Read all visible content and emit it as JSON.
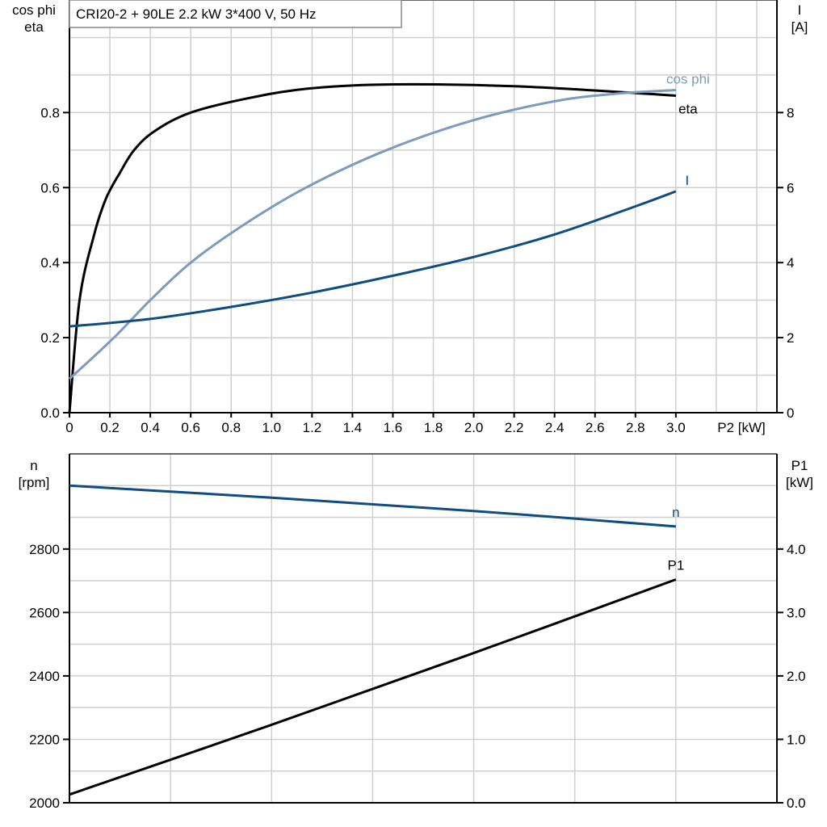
{
  "chart_data": [
    {
      "type": "line",
      "title": "CRI20-2 + 90LE   2.2 kW   3*400 V, 50 Hz",
      "xlabel": "P2 [kW]",
      "ylabel_left": [
        "cos phi",
        "eta"
      ],
      "ylabel_right": [
        "I",
        "[A]"
      ],
      "xlim": [
        0,
        3.5
      ],
      "ylim_left": [
        0,
        1.1
      ],
      "ylim_right": [
        0,
        11
      ],
      "grid": true,
      "x_ticks": [
        "0",
        "0.2",
        "0.4",
        "0.6",
        "0.8",
        "1.0",
        "1.2",
        "1.4",
        "1.6",
        "1.8",
        "2.0",
        "2.2",
        "2.4",
        "2.6",
        "2.8",
        "3.0"
      ],
      "y_ticks_left": [
        "0.0",
        "0.2",
        "0.4",
        "0.6",
        "0.8"
      ],
      "y_ticks_right": [
        "0",
        "2",
        "4",
        "6",
        "8"
      ],
      "series": [
        {
          "name": "eta",
          "axis": "left",
          "color": "#000000",
          "x": [
            0,
            0.05,
            0.12,
            0.18,
            0.25,
            0.32,
            0.42,
            0.6,
            0.9,
            1.2,
            1.6,
            2.2,
            2.8,
            3.0
          ],
          "y": [
            0,
            0.3,
            0.47,
            0.57,
            0.64,
            0.7,
            0.75,
            0.8,
            0.84,
            0.865,
            0.875,
            0.87,
            0.852,
            0.845
          ]
        },
        {
          "name": "cos phi",
          "axis": "left",
          "color": "#7b9cbe",
          "x": [
            0,
            0.22,
            0.4,
            0.6,
            0.86,
            1.17,
            1.57,
            2.0,
            2.4,
            2.7,
            3.0
          ],
          "y": [
            0.09,
            0.2,
            0.3,
            0.4,
            0.5,
            0.6,
            0.7,
            0.78,
            0.83,
            0.85,
            0.86
          ]
        },
        {
          "name": "I",
          "axis": "right",
          "color": "#0f4c81",
          "x": [
            0,
            0.4,
            0.8,
            1.2,
            1.6,
            2.0,
            2.4,
            2.8,
            3.0
          ],
          "y": [
            2.3,
            2.5,
            2.82,
            3.2,
            3.65,
            4.15,
            4.75,
            5.5,
            5.9
          ]
        }
      ]
    },
    {
      "type": "line",
      "xlim": [
        0,
        3.5
      ],
      "ylabel_left": [
        "n",
        "[rpm]"
      ],
      "ylabel_right": [
        "P1",
        "[kW]"
      ],
      "ylim_left": [
        2000,
        3100
      ],
      "ylim_right": [
        0,
        5.5
      ],
      "grid": true,
      "y_ticks_left": [
        "2000",
        "2200",
        "2400",
        "2600",
        "2800"
      ],
      "y_ticks_right": [
        "0.0",
        "1.0",
        "2.0",
        "3.0",
        "4.0"
      ],
      "series": [
        {
          "name": "n",
          "axis": "left",
          "color": "#0f4c81",
          "x": [
            0,
            1.0,
            2.0,
            3.0
          ],
          "y": [
            3000,
            2962,
            2920,
            2871
          ]
        },
        {
          "name": "P1",
          "axis": "right",
          "color": "#000000",
          "x": [
            0,
            1.0,
            2.0,
            3.0
          ],
          "y": [
            0.13,
            1.23,
            2.36,
            3.52
          ]
        }
      ]
    }
  ]
}
